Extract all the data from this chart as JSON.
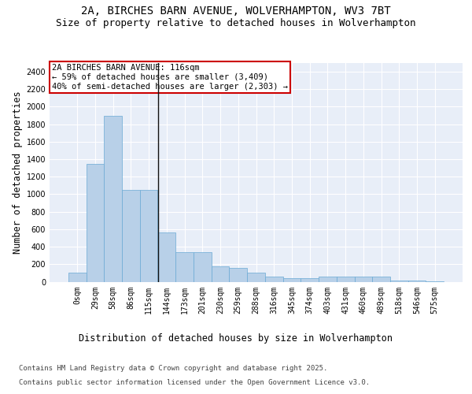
{
  "title_line1": "2A, BIRCHES BARN AVENUE, WOLVERHAMPTON, WV3 7BT",
  "title_line2": "Size of property relative to detached houses in Wolverhampton",
  "xlabel": "Distribution of detached houses by size in Wolverhampton",
  "ylabel": "Number of detached properties",
  "footer_line1": "Contains HM Land Registry data © Crown copyright and database right 2025.",
  "footer_line2": "Contains public sector information licensed under the Open Government Licence v3.0.",
  "annotation_line1": "2A BIRCHES BARN AVENUE: 116sqm",
  "annotation_line2": "← 59% of detached houses are smaller (3,409)",
  "annotation_line3": "40% of semi-detached houses are larger (2,303) →",
  "bin_labels": [
    "0sqm",
    "29sqm",
    "58sqm",
    "86sqm",
    "115sqm",
    "144sqm",
    "173sqm",
    "201sqm",
    "230sqm",
    "259sqm",
    "288sqm",
    "316sqm",
    "345sqm",
    "374sqm",
    "403sqm",
    "431sqm",
    "460sqm",
    "489sqm",
    "518sqm",
    "546sqm",
    "575sqm"
  ],
  "bar_values": [
    100,
    1350,
    1900,
    1050,
    1050,
    560,
    340,
    340,
    175,
    160,
    100,
    60,
    40,
    40,
    60,
    60,
    60,
    60,
    10,
    10,
    5
  ],
  "bar_color": "#b8d0e8",
  "bar_edge_color": "#6aaad4",
  "vline_x_idx": 4,
  "vline_color": "#111111",
  "annotation_box_color": "#cc0000",
  "background_color": "#e8eef8",
  "ylim": [
    0,
    2500
  ],
  "yticks": [
    0,
    200,
    400,
    600,
    800,
    1000,
    1200,
    1400,
    1600,
    1800,
    2000,
    2200,
    2400
  ],
  "grid_color": "#ffffff",
  "title_fontsize": 10,
  "subtitle_fontsize": 9,
  "axis_label_fontsize": 8.5,
  "tick_fontsize": 7,
  "annotation_fontsize": 7.5,
  "footer_fontsize": 6.5
}
